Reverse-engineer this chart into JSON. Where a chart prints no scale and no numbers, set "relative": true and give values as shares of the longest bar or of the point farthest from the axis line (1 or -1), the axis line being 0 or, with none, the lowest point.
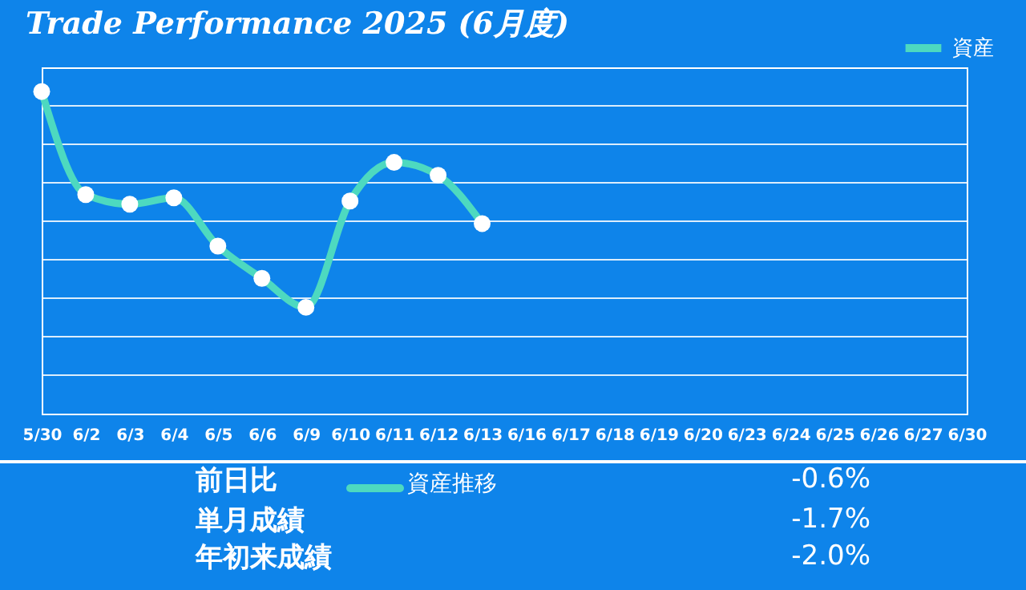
{
  "chart_data": {
    "type": "line",
    "title": "Trade Performance 2025 (6月度)",
    "relative": true,
    "categories": [
      "5/30",
      "6/2",
      "6/3",
      "6/4",
      "6/5",
      "6/6",
      "6/9",
      "6/10",
      "6/11",
      "6/12",
      "6/13",
      "6/16",
      "6/17",
      "6/18",
      "6/19",
      "6/20",
      "6/23",
      "6/24",
      "6/25",
      "6/26",
      "6/27",
      "6/30"
    ],
    "series": [
      {
        "name": "資産",
        "color": "#4dd9c0",
        "values": [
          1,
          0.68,
          0.65,
          0.67,
          0.52,
          0.42,
          0.33,
          0.66,
          0.78,
          0.74,
          0.59,
          null,
          null,
          null,
          null,
          null,
          null,
          null,
          null,
          null,
          null,
          null
        ]
      }
    ],
    "marker": "circle",
    "grid": "y",
    "legend": "top right",
    "annotations": [
      "前日比",
      "資産推移",
      "-0.6%",
      "単月成績",
      "-1.7%",
      "年初来成績",
      "-2.0%"
    ]
  }
}
